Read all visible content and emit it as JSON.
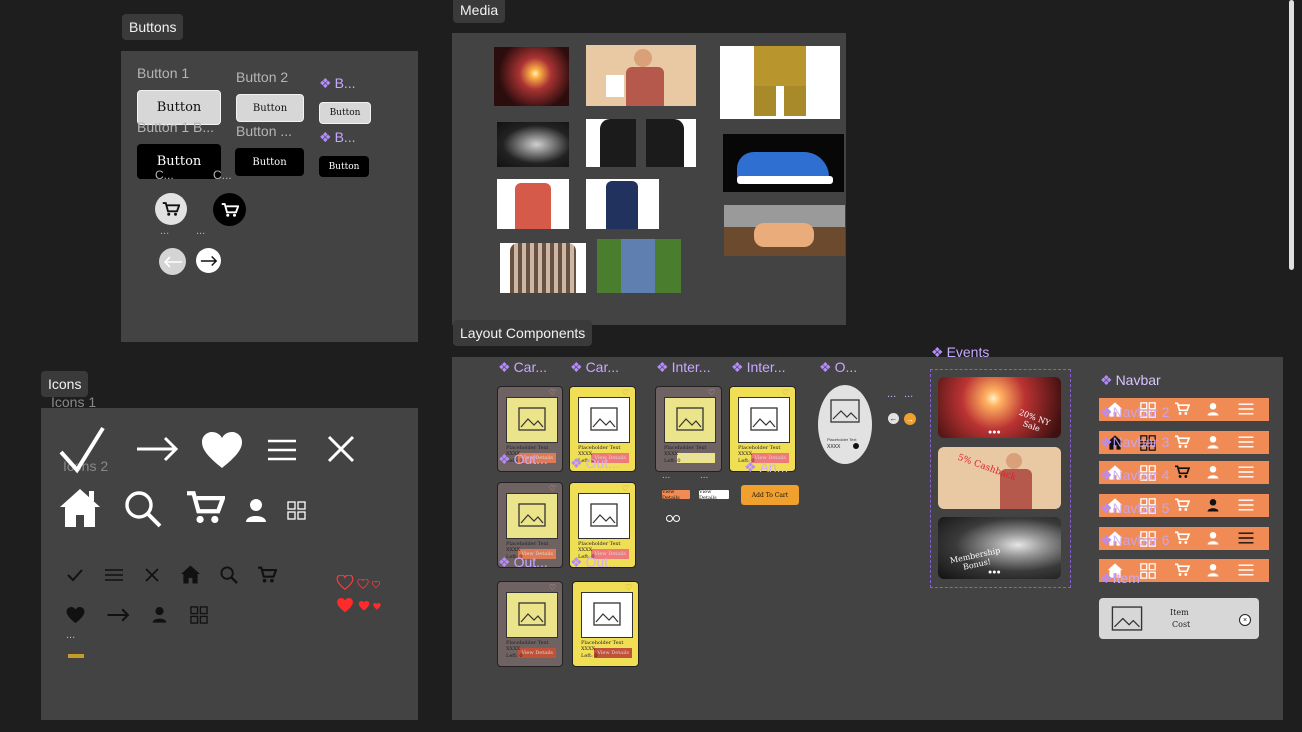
{
  "sections": {
    "buttons": "Buttons",
    "media": "Media",
    "icons": "Icons",
    "layout": "Layout Components"
  },
  "buttons_frame": {
    "label_1": "Button 1",
    "label_2": "Button 2",
    "label_1b": "Button 1 B...",
    "label_2b": "Button ...",
    "comp_b1": "B...",
    "comp_b2": "B...",
    "btn_text": "Button",
    "c_label_1": "C...",
    "c_label_2": "C...",
    "dots_1": "...",
    "dots_2": "..."
  },
  "icons_frame": {
    "icons_1": "Icons 1",
    "icons_2": "Icons 2",
    "dots": "..."
  },
  "layout": {
    "card_comp_1": "Car...",
    "card_comp_2": "Car...",
    "inter_comp_1": "Inter...",
    "inter_comp_2": "Inter...",
    "o_comp": "O...",
    "events": "Events",
    "navbar": "Navbar",
    "out_labels": [
      "Out...",
      "Out...",
      "Out...",
      "Out..."
    ],
    "card_text": "Placeholder Text",
    "card_price": "XXXX",
    "card_left": "Left: 0",
    "view_details": "View Details",
    "add_to_cart": "Add To Cart",
    "oval_text": "Placeholder Text",
    "oval_price": "XXXX",
    "dots_a": "...",
    "dots_b": "...",
    "dots_c": "...",
    "dots_d": "...",
    "an_label": "An...",
    "event_1": "20% NY Sale",
    "event_2": "5% Cashback",
    "event_3": "Membership Bonus!",
    "navbar_labels": [
      "Navbar 2",
      "Navbar 3",
      "Navbar 4",
      "Navbar 5",
      "Navbar 6"
    ],
    "item_label": "Item",
    "item_name": "Item",
    "item_cost": "Cost"
  }
}
